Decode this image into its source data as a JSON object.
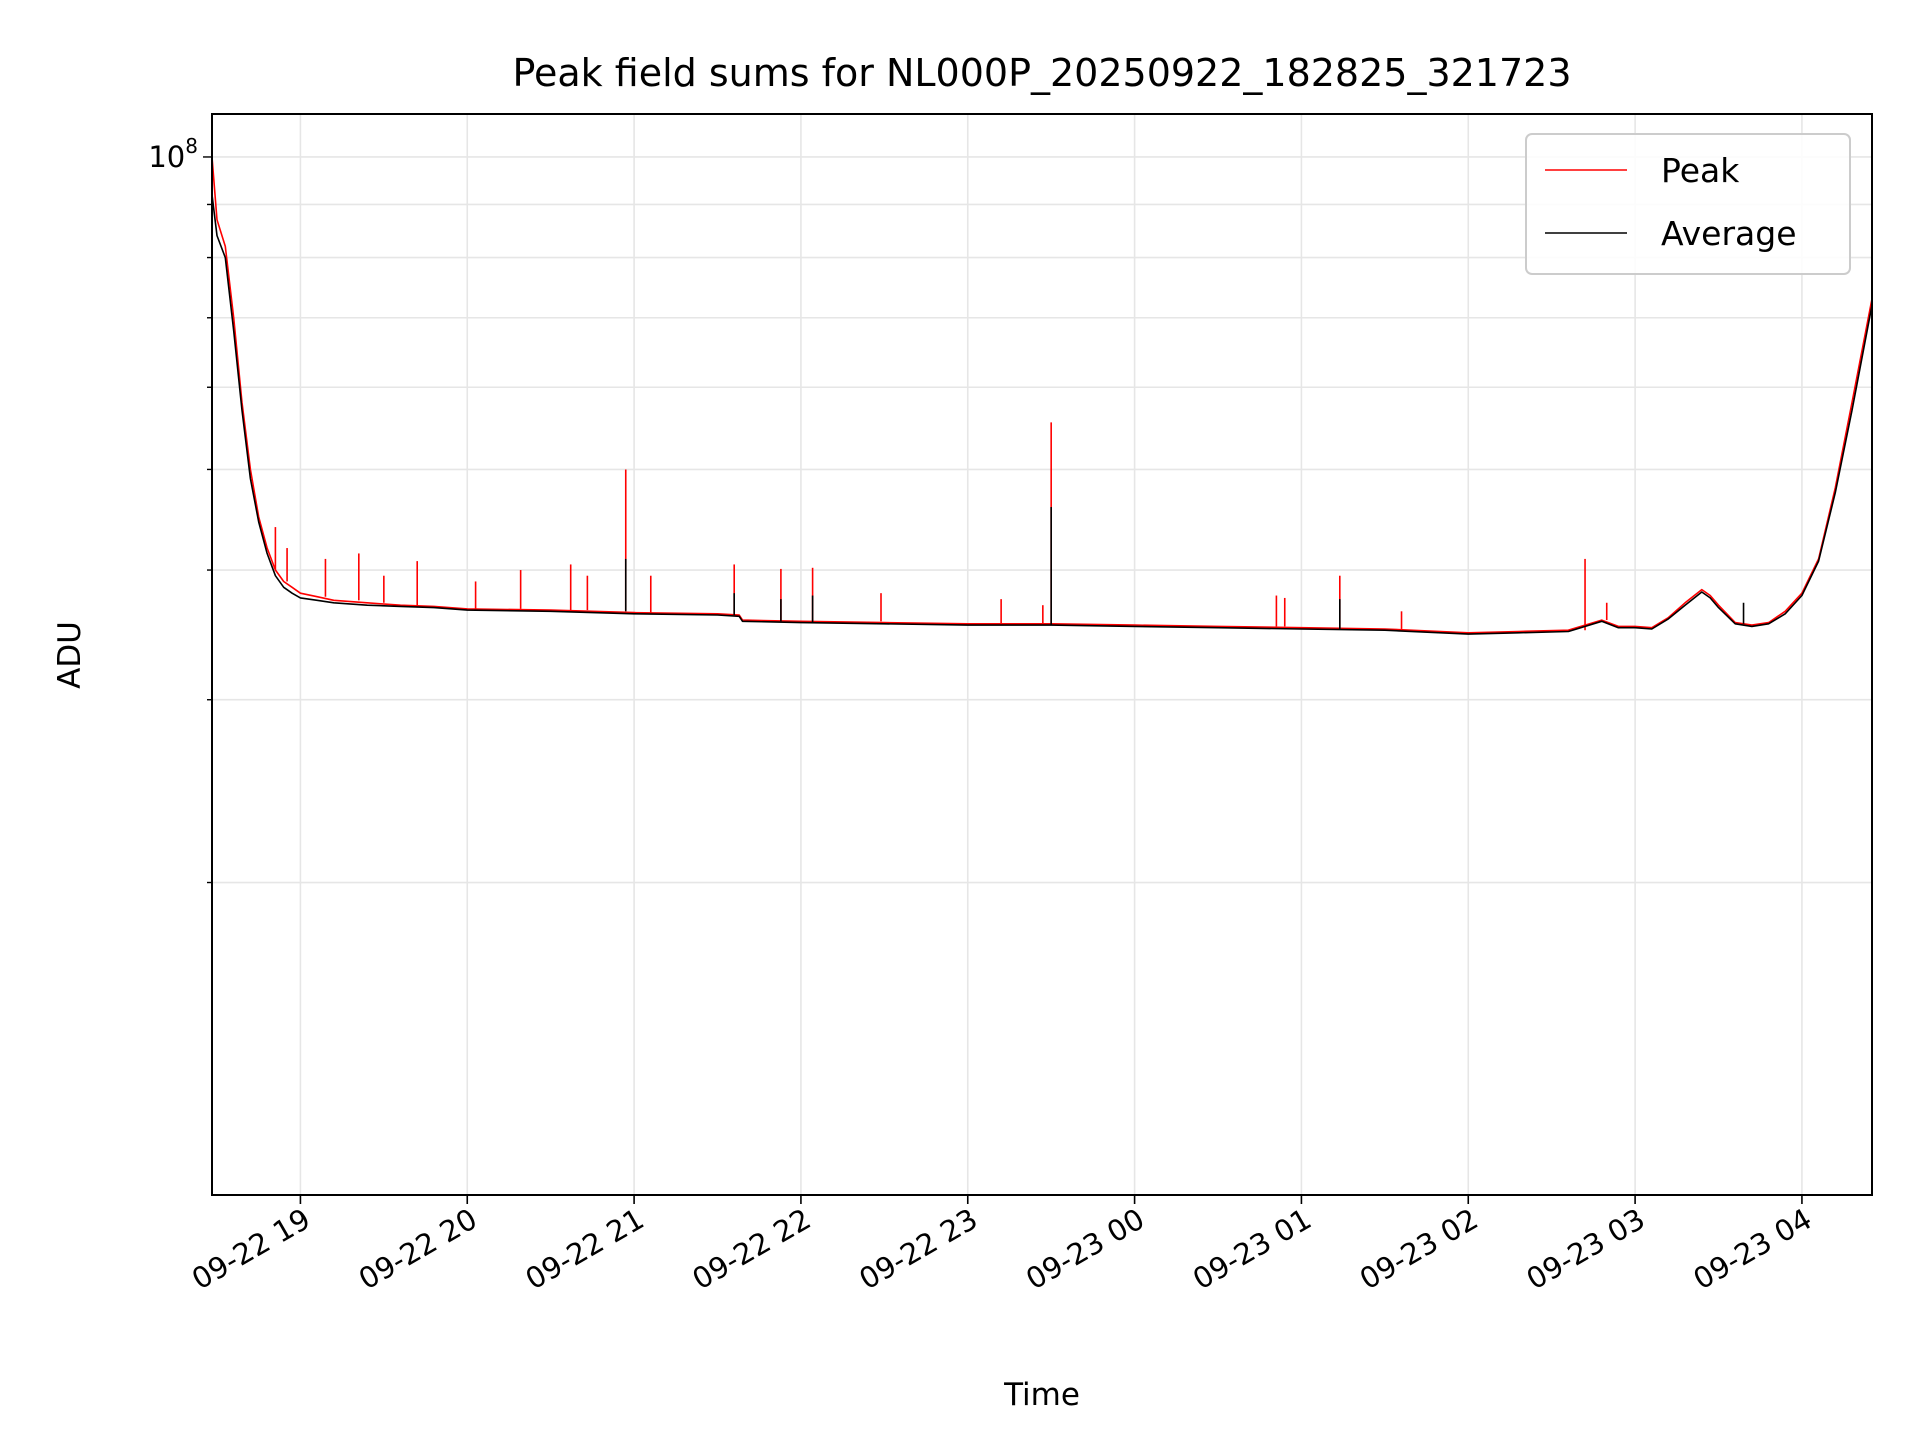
{
  "chart_data": {
    "type": "line",
    "title": "Peak field sums for NL000P_20250922_182825_321723",
    "xlabel": "Time",
    "ylabel": "ADU",
    "yscale": "log",
    "ylim": [
      10000000,
      110000000
    ],
    "xlim": [
      -0.53,
      9.42
    ],
    "grid": true,
    "legend_position": "top-right",
    "x_tick_labels": [
      "09-22 19",
      "09-22 20",
      "09-22 21",
      "09-22 22",
      "09-22 23",
      "09-23 00",
      "09-23 01",
      "09-23 02",
      "09-23 03",
      "09-23 04"
    ],
    "x_tick_hours_since_19": [
      0,
      1,
      2,
      3,
      4,
      5,
      6,
      7,
      8,
      9
    ],
    "y_tick_label_main": "10",
    "y_tick_label_exp": "8",
    "y_major_tick_value": 100000000,
    "y_minor_tick_values": [
      20000000,
      30000000,
      40000000,
      50000000,
      60000000,
      70000000,
      80000000,
      90000000
    ],
    "series": [
      {
        "name": "Peak",
        "color": "#ff0000",
        "x_hours_since_19": [
          -0.53,
          -0.5,
          -0.45,
          -0.4,
          -0.35,
          -0.3,
          -0.25,
          -0.2,
          -0.15,
          -0.1,
          -0.05,
          0.0,
          0.1,
          0.2,
          0.4,
          0.6,
          0.8,
          1.0,
          1.5,
          2.0,
          2.5,
          2.63,
          2.65,
          3.0,
          3.5,
          4.0,
          4.5,
          5.0,
          5.5,
          6.0,
          6.5,
          7.0,
          7.3,
          7.6,
          7.8,
          7.9,
          8.0,
          8.1,
          8.2,
          8.3,
          8.4,
          8.45,
          8.5,
          8.6,
          8.7,
          8.8,
          8.9,
          9.0,
          9.1,
          9.2,
          9.3,
          9.42
        ],
        "values": [
          100000000,
          87000000,
          82000000,
          70000000,
          58000000,
          50000000,
          45000000,
          42000000,
          40000000,
          39000000,
          38500000,
          38000000,
          37700000,
          37400000,
          37200000,
          37000000,
          36900000,
          36700000,
          36600000,
          36400000,
          36300000,
          36200000,
          35800000,
          35700000,
          35600000,
          35500000,
          35500000,
          35400000,
          35300000,
          35200000,
          35100000,
          34800000,
          34900000,
          35000000,
          35800000,
          35300000,
          35300000,
          35200000,
          36000000,
          37200000,
          38300000,
          37800000,
          37000000,
          35600000,
          35400000,
          35600000,
          36500000,
          38000000,
          41000000,
          48000000,
          58000000,
          73000000
        ],
        "spikes": [
          {
            "x": -0.3,
            "value": 50000000
          },
          {
            "x": -0.15,
            "value": 44000000
          },
          {
            "x": -0.08,
            "value": 42000000
          },
          {
            "x": 0.15,
            "value": 41000000
          },
          {
            "x": 0.35,
            "value": 41500000
          },
          {
            "x": 0.5,
            "value": 39500000
          },
          {
            "x": 0.7,
            "value": 40800000
          },
          {
            "x": 1.05,
            "value": 39000000
          },
          {
            "x": 1.32,
            "value": 40000000
          },
          {
            "x": 1.62,
            "value": 40500000
          },
          {
            "x": 1.72,
            "value": 39500000
          },
          {
            "x": 1.95,
            "value": 50000000
          },
          {
            "x": 2.1,
            "value": 39500000
          },
          {
            "x": 2.6,
            "value": 40500000
          },
          {
            "x": 2.88,
            "value": 40100000
          },
          {
            "x": 3.07,
            "value": 40200000
          },
          {
            "x": 3.48,
            "value": 38000000
          },
          {
            "x": 4.2,
            "value": 37500000
          },
          {
            "x": 4.45,
            "value": 37000000
          },
          {
            "x": 4.5,
            "value": 55500000
          },
          {
            "x": 5.85,
            "value": 37800000
          },
          {
            "x": 5.9,
            "value": 37600000
          },
          {
            "x": 6.23,
            "value": 39500000
          },
          {
            "x": 6.6,
            "value": 36500000
          },
          {
            "x": 7.7,
            "value": 41000000
          },
          {
            "x": 7.83,
            "value": 37200000
          }
        ]
      },
      {
        "name": "Average",
        "color": "#000000",
        "x_hours_since_19": [
          -0.53,
          -0.5,
          -0.45,
          -0.4,
          -0.35,
          -0.3,
          -0.25,
          -0.2,
          -0.15,
          -0.1,
          -0.05,
          0.0,
          0.1,
          0.2,
          0.4,
          0.6,
          0.8,
          1.0,
          1.5,
          2.0,
          2.5,
          2.63,
          2.65,
          3.0,
          3.5,
          4.0,
          4.5,
          5.0,
          5.5,
          6.0,
          6.5,
          7.0,
          7.3,
          7.6,
          7.8,
          7.9,
          8.0,
          8.1,
          8.2,
          8.3,
          8.4,
          8.45,
          8.5,
          8.6,
          8.7,
          8.8,
          8.9,
          9.0,
          9.1,
          9.2,
          9.3,
          9.42
        ],
        "values": [
          92000000,
          84000000,
          80000000,
          68000000,
          57000000,
          49000000,
          44500000,
          41500000,
          39500000,
          38500000,
          38000000,
          37600000,
          37400000,
          37200000,
          37000000,
          36900000,
          36800000,
          36600000,
          36500000,
          36300000,
          36200000,
          36100000,
          35700000,
          35600000,
          35500000,
          35400000,
          35400000,
          35300000,
          35200000,
          35100000,
          35000000,
          34700000,
          34800000,
          34900000,
          35700000,
          35200000,
          35200000,
          35100000,
          35900000,
          37000000,
          38100000,
          37600000,
          36800000,
          35500000,
          35300000,
          35500000,
          36300000,
          37800000,
          40800000,
          47500000,
          57000000,
          72000000
        ],
        "spikes": [
          {
            "x": 1.95,
            "value": 41000000
          },
          {
            "x": 2.6,
            "value": 38000000
          },
          {
            "x": 2.88,
            "value": 37500000
          },
          {
            "x": 3.07,
            "value": 37800000
          },
          {
            "x": 4.5,
            "value": 46000000
          },
          {
            "x": 6.23,
            "value": 37500000
          },
          {
            "x": 8.65,
            "value": 37200000
          }
        ]
      }
    ]
  }
}
